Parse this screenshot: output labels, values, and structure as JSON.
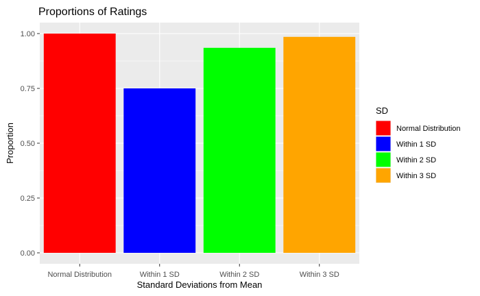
{
  "chart_data": {
    "type": "bar",
    "title": "Proportions of Ratings",
    "xlabel": "Standard Deviations from Mean",
    "ylabel": "Proportion",
    "categories": [
      "Normal Distribution",
      "Within 1 SD",
      "Within 2 SD",
      "Within 3 SD"
    ],
    "values": [
      1.0,
      0.75,
      0.935,
      0.985
    ],
    "colors": [
      "#ff0000",
      "#0000ff",
      "#00ff00",
      "#ffa500"
    ],
    "ylim": [
      -0.05,
      1.05
    ],
    "yticks": [
      "0.00",
      "0.25",
      "0.50",
      "0.75",
      "1.00"
    ],
    "ytick_values": [
      0,
      0.25,
      0.5,
      0.75,
      1.0
    ],
    "grid": true,
    "legend": {
      "title": "SD",
      "placement": "right",
      "entries": [
        "Normal Distribution",
        "Within 1 SD",
        "Within 2 SD",
        "Within 3 SD"
      ]
    },
    "background": "#ebebeb",
    "gridline_color": "#ffffff"
  }
}
